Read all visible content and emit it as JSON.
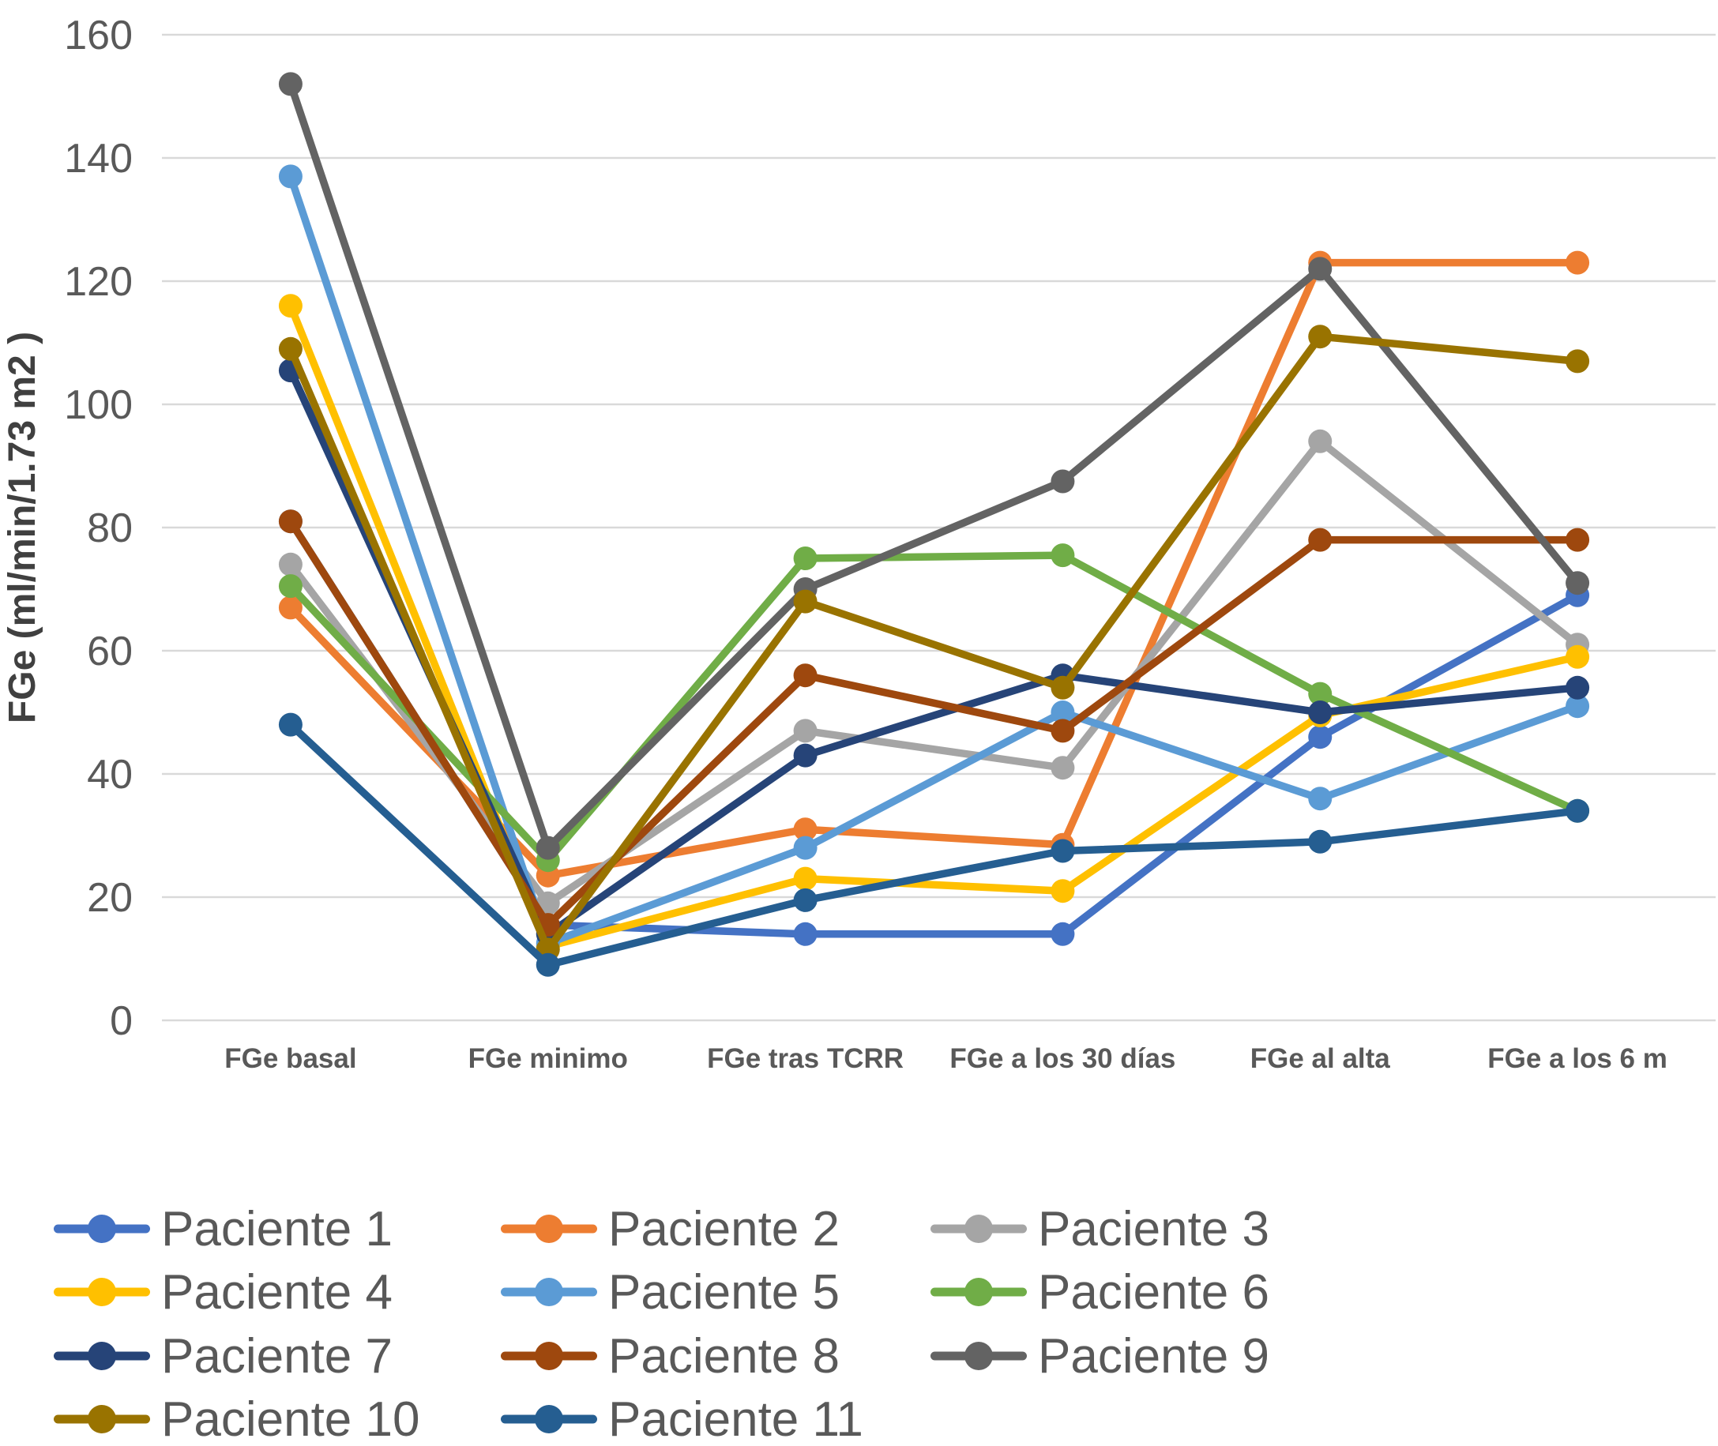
{
  "chart_data": {
    "type": "line",
    "title": "",
    "xlabel": "",
    "ylabel": "FGe (ml/min/1.73 m2 )",
    "ylim": [
      0,
      160
    ],
    "yticks": [
      0,
      20,
      40,
      60,
      80,
      100,
      120,
      140,
      160
    ],
    "grid": true,
    "legend_position": "bottom",
    "categories": [
      "FGe basal",
      "FGe minimo",
      "FGe tras TCRR",
      "FGe a los 30 días",
      "FGe al alta",
      "FGe a los 6 m"
    ],
    "series": [
      {
        "name": "Paciente 1",
        "color": "#4472C4",
        "values": [
          81,
          15.5,
          14,
          14,
          46,
          69
        ]
      },
      {
        "name": "Paciente 2",
        "color": "#ED7D31",
        "values": [
          67,
          23.5,
          31,
          28.5,
          123,
          123
        ]
      },
      {
        "name": "Paciente 3",
        "color": "#A5A5A5",
        "values": [
          74,
          19,
          47,
          41,
          94,
          61
        ]
      },
      {
        "name": "Paciente 4",
        "color": "#FFC000",
        "values": [
          116,
          12,
          23,
          21,
          49.5,
          59
        ]
      },
      {
        "name": "Paciente 5",
        "color": "#5B9BD5",
        "values": [
          137,
          12.5,
          28,
          50,
          36,
          51
        ]
      },
      {
        "name": "Paciente 6",
        "color": "#70AD47",
        "values": [
          70.5,
          26,
          75,
          75.5,
          53,
          34
        ]
      },
      {
        "name": "Paciente 7",
        "color": "#264478",
        "values": [
          105.5,
          14,
          43,
          56,
          50,
          54
        ]
      },
      {
        "name": "Paciente 8",
        "color": "#9E480E",
        "values": [
          81,
          15.5,
          56,
          47,
          78,
          78
        ]
      },
      {
        "name": "Paciente 9",
        "color": "#636363",
        "values": [
          152,
          28,
          70,
          87.5,
          122,
          71
        ]
      },
      {
        "name": "Paciente 10",
        "color": "#997300",
        "values": [
          109,
          11.5,
          68,
          54,
          111,
          107
        ]
      },
      {
        "name": "Paciente 11",
        "color": "#255E91",
        "values": [
          48,
          9,
          19.5,
          27.5,
          29,
          34
        ]
      }
    ],
    "colors": {
      "grid": "#D9D9D9",
      "tick_text": "#595959",
      "category_text": "#595959",
      "axis_title_text": "#404040",
      "legend_text": "#595959",
      "background": "#FFFFFF"
    }
  }
}
